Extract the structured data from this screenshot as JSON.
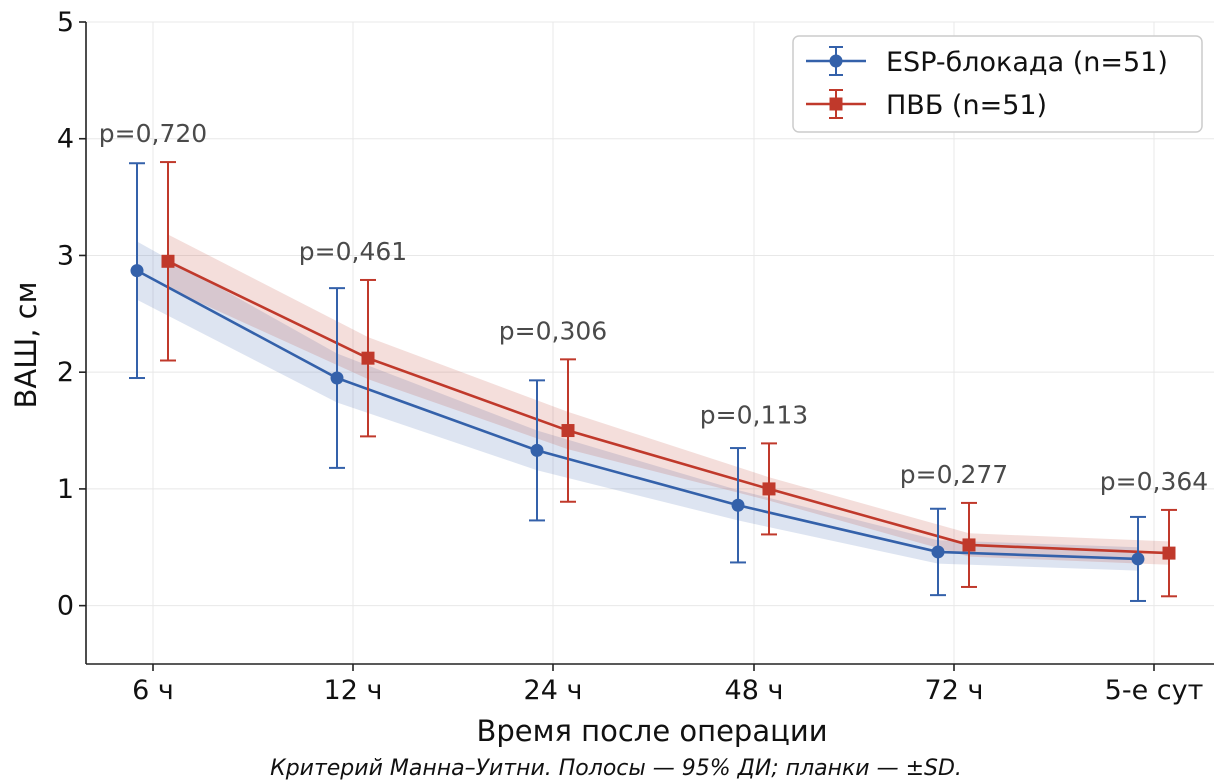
{
  "chart_data": {
    "type": "line",
    "title": "",
    "xlabel": "Время после операции",
    "ylabel": "ВАШ, см",
    "categories": [
      "6 ч",
      "12 ч",
      "24 ч",
      "48 ч",
      "72 ч",
      "5-е сут"
    ],
    "ylim": [
      -0.5,
      5
    ],
    "yticks": [
      0,
      1,
      2,
      3,
      4,
      5
    ],
    "grid": true,
    "legend_position": "top-right",
    "series": [
      {
        "name": "ESP-блокада (n=51)",
        "color": "#3461aa",
        "marker": "circle",
        "mean": [
          2.87,
          1.95,
          1.33,
          0.86,
          0.46,
          0.4
        ],
        "sd_low": [
          1.95,
          1.18,
          0.73,
          0.37,
          0.09,
          0.04
        ],
        "sd_high": [
          3.79,
          2.72,
          1.93,
          1.35,
          0.83,
          0.76
        ],
        "ci_low": [
          2.62,
          1.74,
          1.16,
          0.73,
          0.36,
          0.3
        ],
        "ci_high": [
          3.12,
          2.16,
          1.5,
          0.99,
          0.56,
          0.5
        ]
      },
      {
        "name": "ПВБ (n=51)",
        "color": "#c0392b",
        "marker": "square",
        "mean": [
          2.95,
          2.12,
          1.5,
          1.0,
          0.52,
          0.45
        ],
        "sd_low": [
          2.1,
          1.45,
          0.89,
          0.61,
          0.16,
          0.08
        ],
        "sd_high": [
          3.8,
          2.79,
          2.11,
          1.39,
          0.88,
          0.82
        ],
        "ci_low": [
          2.72,
          1.94,
          1.34,
          0.9,
          0.42,
          0.35
        ],
        "ci_high": [
          3.18,
          2.3,
          1.66,
          1.1,
          0.62,
          0.55
        ]
      }
    ],
    "p_values": [
      "p=0,720",
      "p=0,461",
      "p=0,306",
      "p=0,113",
      "p=0,277",
      "p=0,364"
    ],
    "caption": "Критерий Манна–Уитни. Полосы — 95% ДИ; планки — ±SD."
  }
}
